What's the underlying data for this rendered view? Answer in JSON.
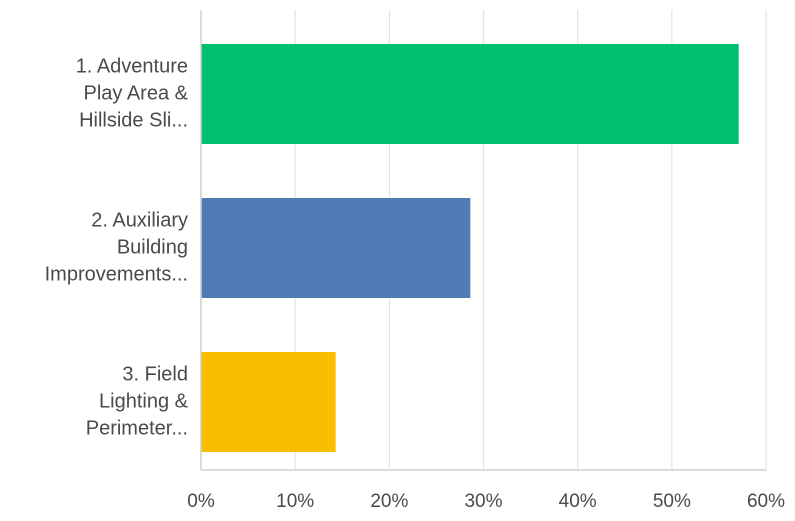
{
  "chart_data": {
    "type": "bar",
    "orientation": "horizontal",
    "categories": [
      [
        "1. Adventure",
        "Play Area &",
        "Hillside Sli..."
      ],
      [
        "2. Auxiliary",
        "Building",
        "Improvements..."
      ],
      [
        "3. Field",
        "Lighting &",
        "Perimeter..."
      ]
    ],
    "values": [
      57.1,
      28.6,
      14.3
    ],
    "colors": [
      "#00bf6f",
      "#507cb6",
      "#f9be00"
    ],
    "xlim": [
      0,
      60
    ],
    "xticks": [
      "0%",
      "10%",
      "20%",
      "30%",
      "40%",
      "50%",
      "60%"
    ],
    "grid": true,
    "title": "",
    "xlabel": "",
    "ylabel": ""
  }
}
